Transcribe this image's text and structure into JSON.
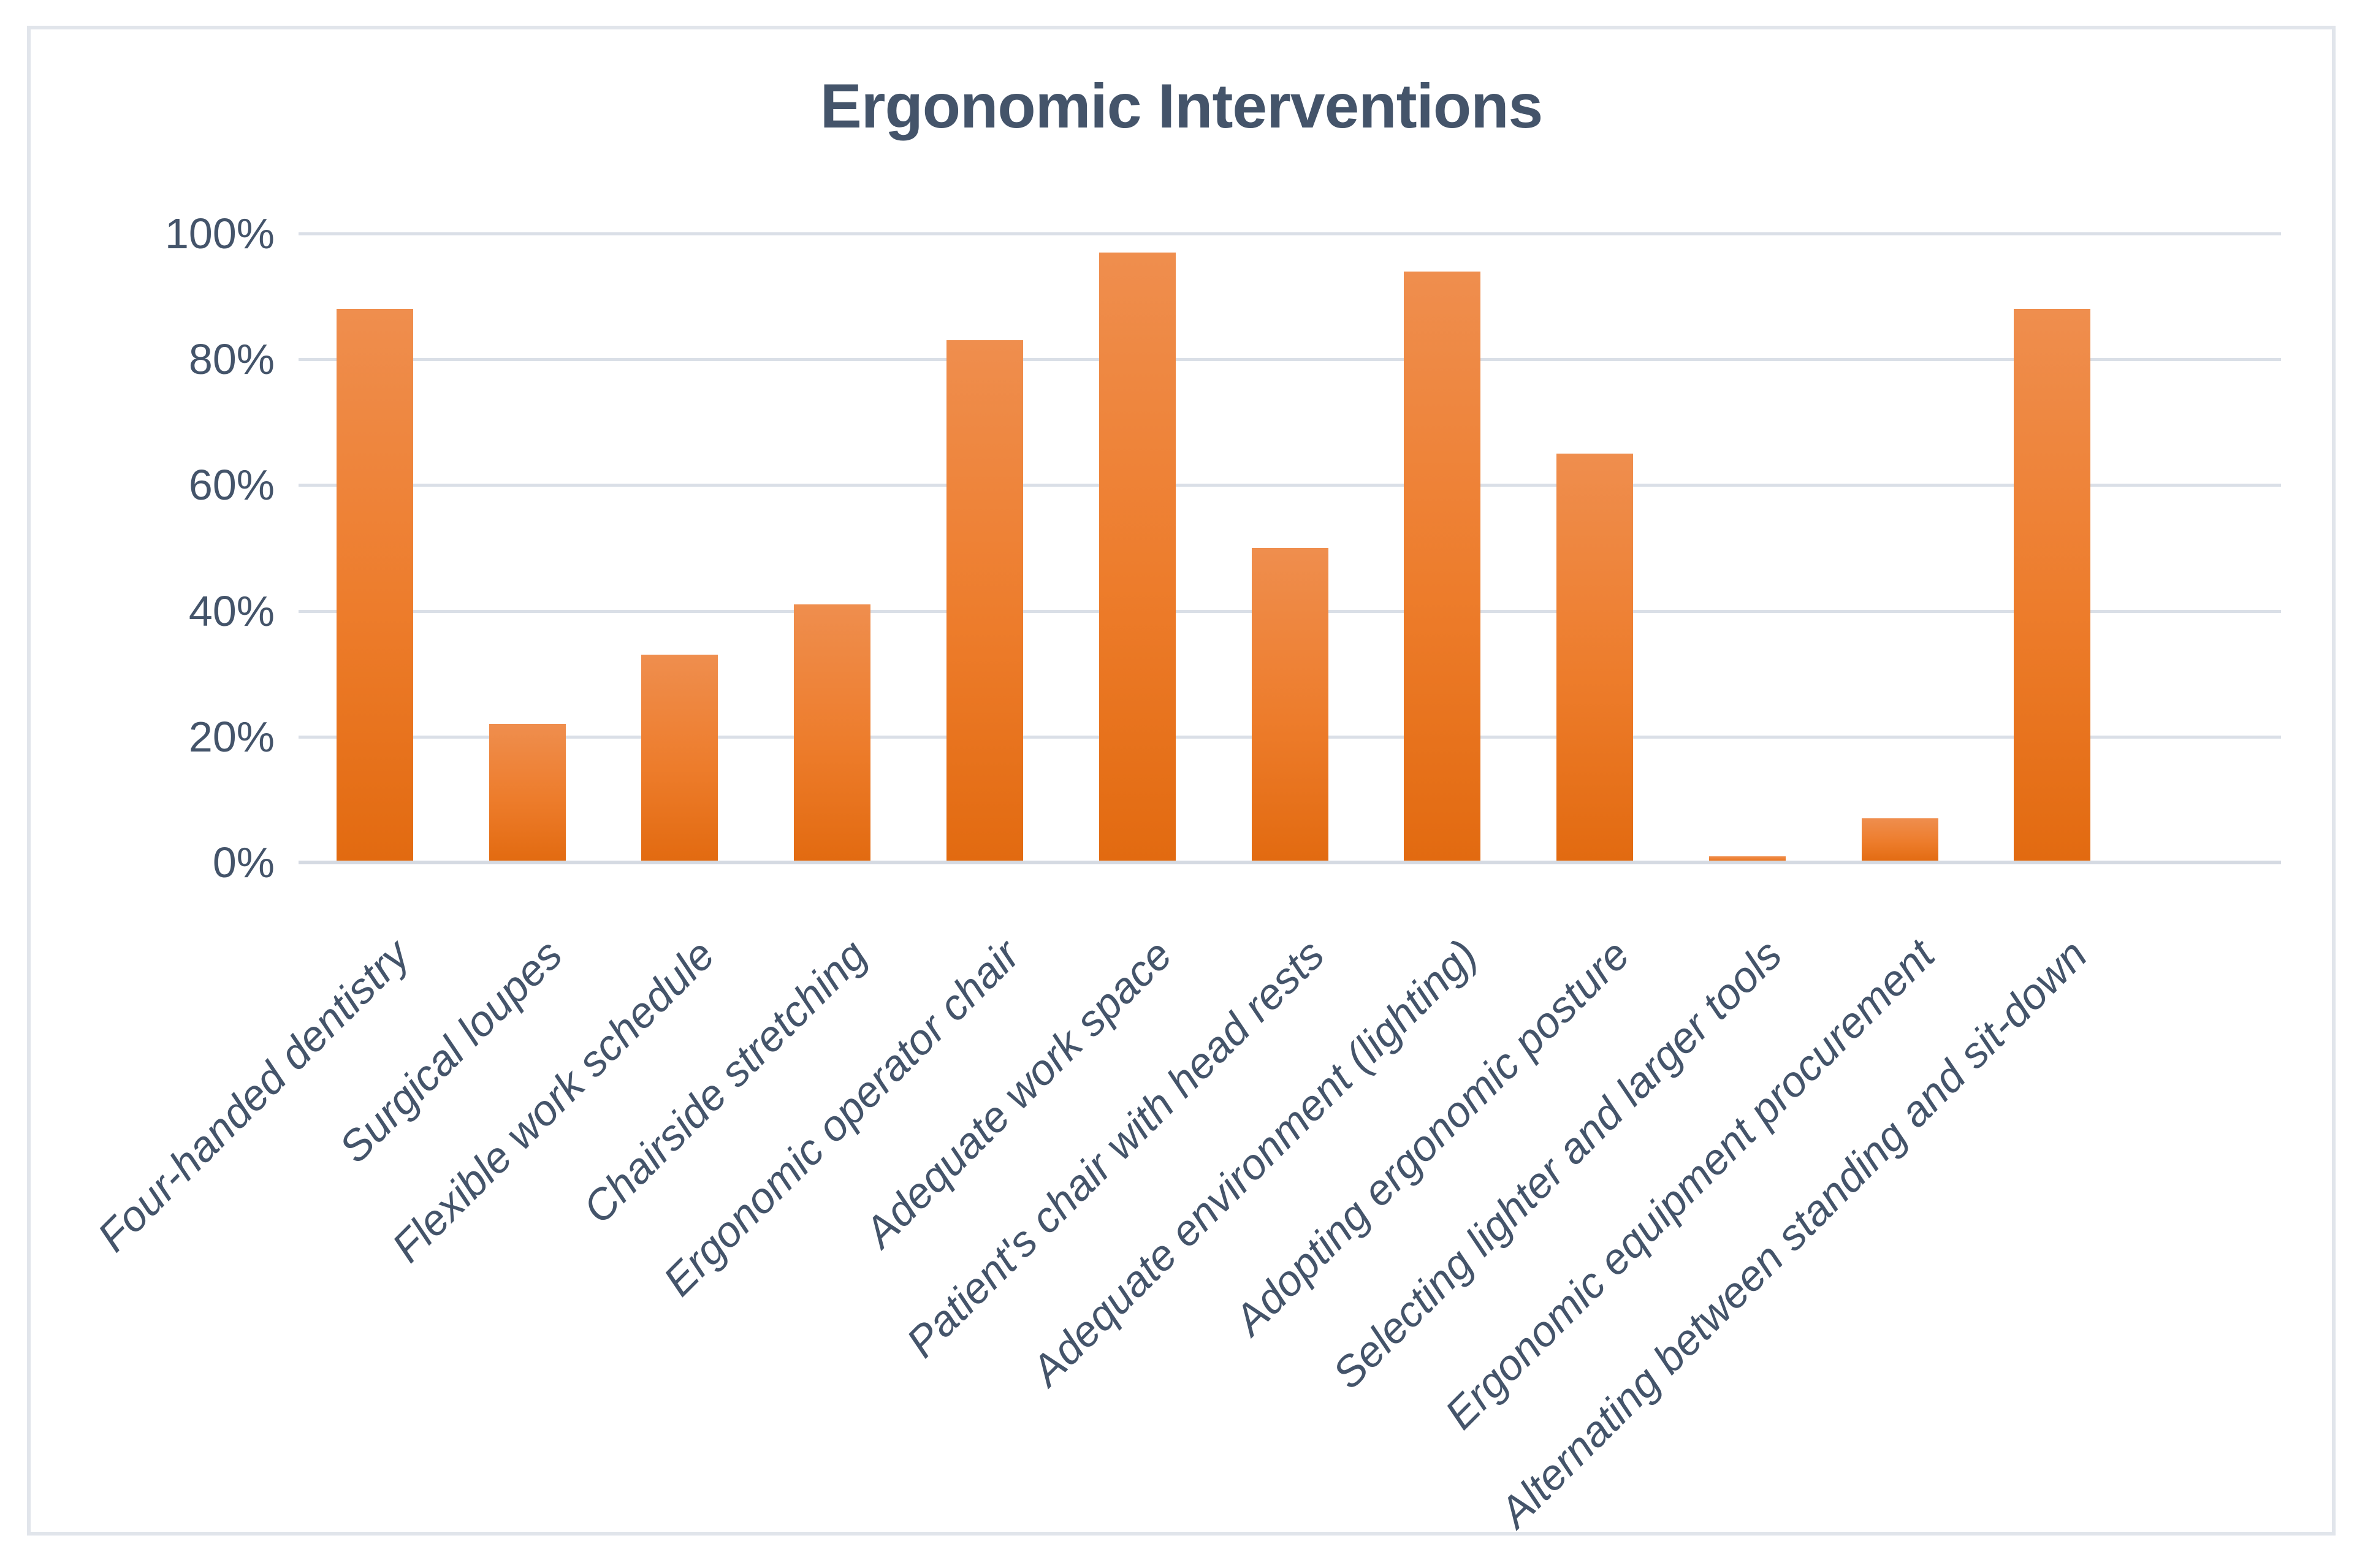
{
  "chart_data": {
    "type": "bar",
    "title": "Ergonomic Interventions",
    "categories": [
      "Four-handed dentistry",
      "Surgical loupes",
      "Flexible work schedule",
      "Chairside stretching",
      "Ergonomic operator chair",
      "Adequate work space",
      "Patient's chair with head rests",
      "Adequate environment (lighting)",
      "Adopting ergonomic posture",
      "Selecting lighter and larger tools",
      "Ergonomic equipment procurement",
      "Alternating between standing and sit-down"
    ],
    "values": [
      88,
      22,
      33,
      41,
      83,
      97,
      50,
      94,
      65,
      1,
      7,
      88
    ],
    "unit": "%",
    "xlabel": "",
    "ylabel": "",
    "ylim": [
      0,
      100
    ],
    "ytick_step": 20,
    "ytick_labels": [
      "0%",
      "20%",
      "40%",
      "60%",
      "80%",
      "100%"
    ],
    "grid": true,
    "legend": false,
    "extra_empty_category_slots": 1,
    "colors": {
      "bar_gradient_top": "#ef8e4e",
      "bar_gradient_mid": "#ed7c2b",
      "bar_gradient_bottom": "#e26a10",
      "text": "#44546a",
      "gridline": "#dadfe7",
      "axis_line": "#d5dae2",
      "frame_border": "#e1e5eb",
      "background": "#ffffff"
    }
  }
}
